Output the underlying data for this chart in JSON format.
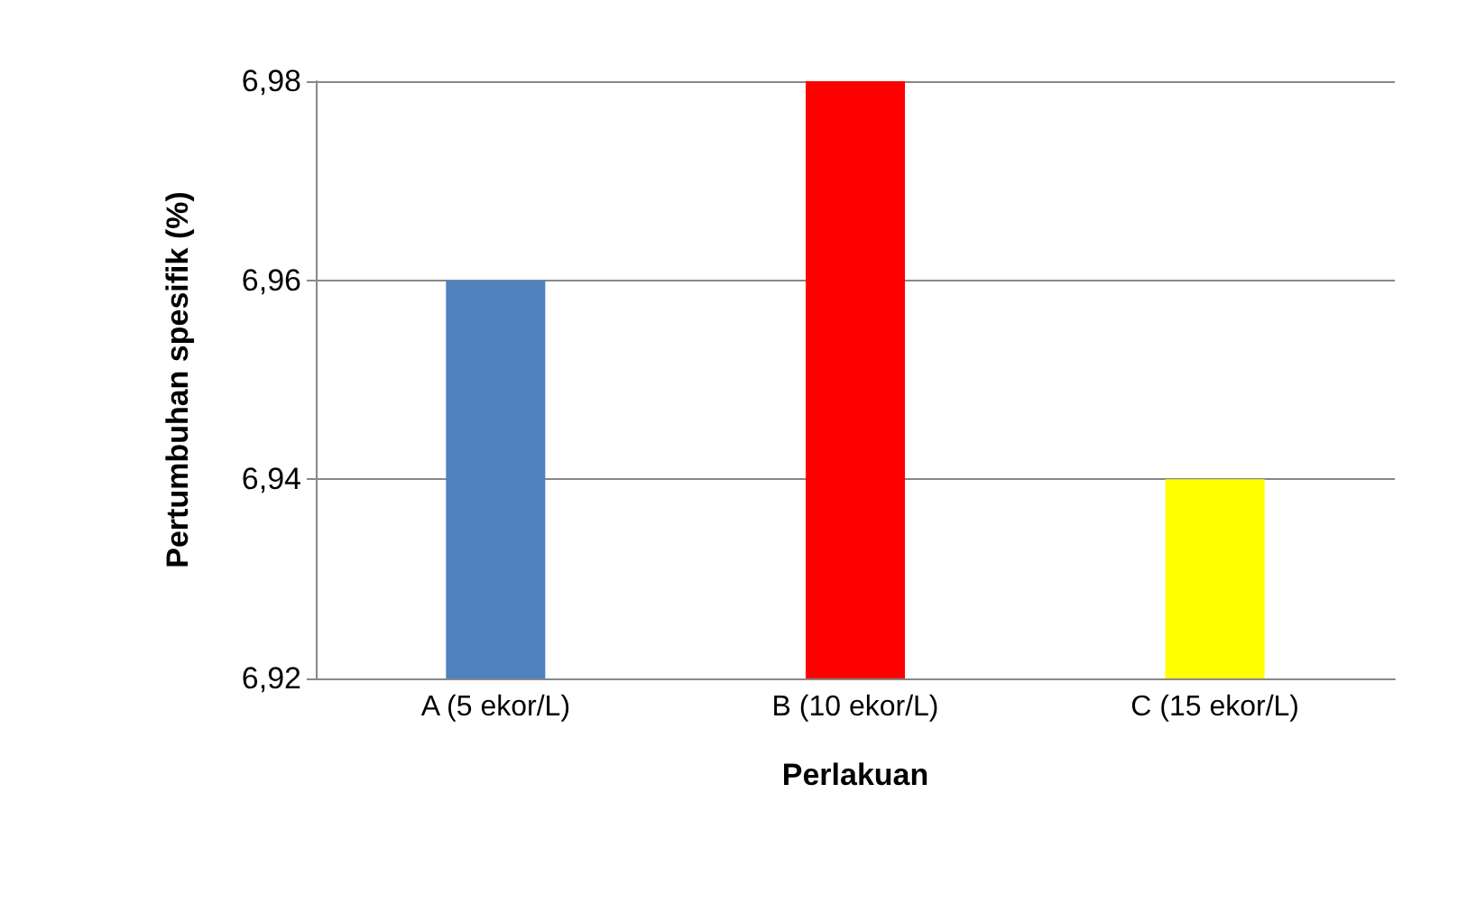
{
  "chart_data": {
    "type": "bar",
    "xlabel": "Perlakuan",
    "ylabel": "Pertumbuhan spesifik (%)",
    "categories": [
      "A (5 ekor/L)",
      "B (10 ekor/L)",
      "C (15 ekor/L)"
    ],
    "values": [
      6.96,
      6.98,
      6.94
    ],
    "colors": [
      "#4f81bd",
      "#ff0000",
      "#ffff00"
    ],
    "ylim": [
      6.92,
      6.98
    ],
    "yticks": [
      {
        "value": 6.92,
        "label": "6,92"
      },
      {
        "value": 6.94,
        "label": "6,94"
      },
      {
        "value": 6.96,
        "label": "6,96"
      },
      {
        "value": 6.98,
        "label": "6,98"
      }
    ],
    "grid": "y"
  }
}
